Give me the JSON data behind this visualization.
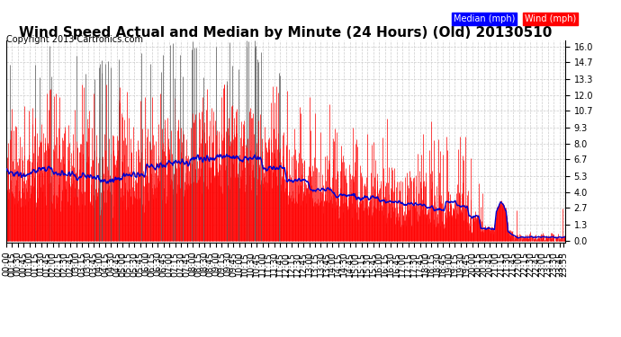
{
  "title": "Wind Speed Actual and Median by Minute (24 Hours) (Old) 20130510",
  "copyright": "Copyright 2013 Cartronics.com",
  "yticks": [
    0.0,
    1.3,
    2.7,
    4.0,
    5.3,
    6.7,
    8.0,
    9.3,
    10.7,
    12.0,
    13.3,
    14.7,
    16.0
  ],
  "ymax": 16.5,
  "ymin": -0.15,
  "legend_median_label": "Median (mph)",
  "legend_wind_label": "Wind (mph)",
  "grid_color": "#cccccc",
  "background_color": "#ffffff",
  "bar_color": "#ff0000",
  "dark_bar_color": "#555555",
  "median_color": "#0000cc",
  "title_fontsize": 11,
  "copyright_fontsize": 7,
  "tick_fontsize": 7,
  "seed_median": 0,
  "seed_wind": 99
}
